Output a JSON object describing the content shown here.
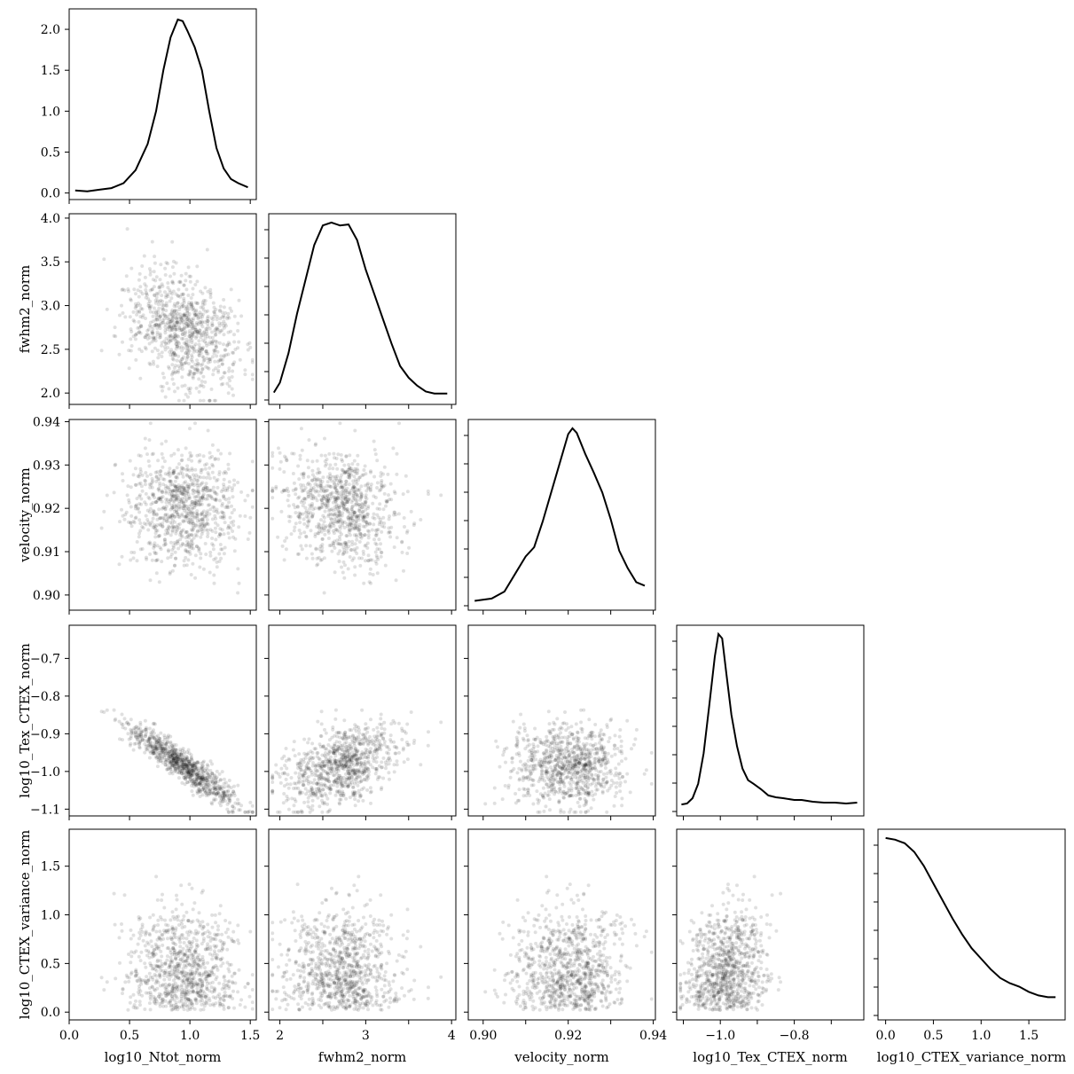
{
  "chart_data": {
    "type": "corner",
    "variables": [
      "log10_Ntot_norm",
      "fwhm2_norm",
      "velocity_norm",
      "log10_Tex_CTEX_norm",
      "log10_CTEX_variance_norm"
    ],
    "ranges": [
      [
        0.0,
        1.55
      ],
      [
        1.87,
        4.05
      ],
      [
        0.8965,
        0.9405
      ],
      [
        -1.118,
        -0.612
      ],
      [
        -0.08,
        1.88
      ]
    ],
    "ticks": [
      {
        "values": [
          0.0,
          0.5,
          1.0,
          1.5
        ],
        "labels": [
          "0.0",
          "0.5",
          "1.0",
          "1.5"
        ]
      },
      {
        "values": [
          2.0,
          2.5,
          3.0,
          3.5,
          4.0
        ],
        "labels": [
          "2.0",
          "2.5",
          "3.0",
          "3.5",
          "4.0"
        ],
        "x_labels": [
          "2",
          "",
          "3",
          "",
          "4"
        ]
      },
      {
        "values": [
          0.9,
          0.91,
          0.92,
          0.93,
          0.94
        ],
        "labels": [
          "0.90",
          "0.91",
          "0.92",
          "0.93",
          "0.94"
        ],
        "x_labels": [
          "0.90",
          "",
          "0.92",
          "",
          "0.94"
        ]
      },
      {
        "values": [
          -1.1,
          -1.0,
          -0.9,
          -0.8,
          -0.7
        ],
        "labels": [
          "−1.1",
          "−1.0",
          "−0.9",
          "−0.8",
          "−0.7"
        ],
        "x_labels": [
          "",
          "−1.0",
          "",
          "−0.8",
          ""
        ]
      },
      {
        "values": [
          0.0,
          0.5,
          1.0,
          1.5
        ],
        "labels": [
          "0.0",
          "0.5",
          "1.0",
          "1.5"
        ]
      }
    ],
    "axis_labels": [
      "log10_Ntot_norm",
      "fwhm2_norm",
      "velocity_norm",
      "log10_Tex_CTEX_norm",
      "log10_CTEX_variance_norm"
    ],
    "diagonal": [
      {
        "type": "line",
        "ylim": [
          -0.08,
          2.25
        ],
        "y_ticks": [
          0.0,
          0.5,
          1.0,
          1.5,
          2.0
        ],
        "y_labels": [
          "0.0",
          "0.5",
          "1.0",
          "1.5",
          "2.0"
        ],
        "x": [
          0.05,
          0.15,
          0.25,
          0.35,
          0.45,
          0.55,
          0.65,
          0.72,
          0.78,
          0.84,
          0.9,
          0.94,
          0.98,
          1.04,
          1.1,
          1.16,
          1.22,
          1.28,
          1.34,
          1.4,
          1.48
        ],
        "y": [
          0.03,
          0.02,
          0.04,
          0.06,
          0.12,
          0.28,
          0.6,
          1.0,
          1.5,
          1.9,
          2.12,
          2.1,
          1.98,
          1.78,
          1.5,
          1.0,
          0.55,
          0.3,
          0.17,
          0.12,
          0.07
        ]
      },
      {
        "type": "line",
        "x": [
          1.93,
          2.0,
          2.1,
          2.2,
          2.3,
          2.4,
          2.5,
          2.6,
          2.7,
          2.8,
          2.9,
          3.0,
          3.1,
          3.2,
          3.3,
          3.4,
          3.5,
          3.6,
          3.7,
          3.8,
          3.95
        ],
        "y": [
          0.05,
          0.15,
          0.45,
          0.85,
          1.2,
          1.55,
          1.75,
          1.78,
          1.75,
          1.76,
          1.6,
          1.3,
          1.05,
          0.8,
          0.55,
          0.32,
          0.2,
          0.12,
          0.06,
          0.04,
          0.04
        ]
      },
      {
        "type": "line",
        "x": [
          0.898,
          0.902,
          0.905,
          0.908,
          0.91,
          0.912,
          0.914,
          0.916,
          0.918,
          0.92,
          0.921,
          0.922,
          0.924,
          0.926,
          0.928,
          0.93,
          0.932,
          0.934,
          0.936,
          0.938
        ],
        "y": [
          0.02,
          0.04,
          0.1,
          0.28,
          0.4,
          0.48,
          0.7,
          0.95,
          1.2,
          1.45,
          1.5,
          1.46,
          1.28,
          1.12,
          0.95,
          0.72,
          0.45,
          0.3,
          0.18,
          0.15
        ]
      },
      {
        "type": "line",
        "x": [
          -1.105,
          -1.09,
          -1.075,
          -1.06,
          -1.045,
          -1.03,
          -1.015,
          -1.005,
          -0.995,
          -0.985,
          -0.97,
          -0.955,
          -0.94,
          -0.925,
          -0.91,
          -0.89,
          -0.87,
          -0.85,
          -0.83,
          -0.8,
          -0.78,
          -0.75,
          -0.72,
          -0.69,
          -0.66,
          -0.63
        ],
        "y": [
          0.05,
          0.06,
          0.12,
          0.28,
          0.62,
          1.15,
          1.7,
          1.95,
          1.9,
          1.55,
          1.05,
          0.7,
          0.45,
          0.32,
          0.28,
          0.22,
          0.15,
          0.13,
          0.12,
          0.1,
          0.1,
          0.08,
          0.07,
          0.07,
          0.06,
          0.07
        ]
      },
      {
        "type": "line",
        "x": [
          0.0,
          0.1,
          0.2,
          0.3,
          0.4,
          0.5,
          0.6,
          0.7,
          0.8,
          0.9,
          1.0,
          1.1,
          1.2,
          1.3,
          1.4,
          1.5,
          1.6,
          1.7,
          1.78
        ],
        "y": [
          1.0,
          0.99,
          0.97,
          0.92,
          0.84,
          0.74,
          0.64,
          0.54,
          0.45,
          0.37,
          0.31,
          0.25,
          0.2,
          0.17,
          0.15,
          0.12,
          0.1,
          0.09,
          0.09
        ]
      }
    ],
    "scatter_model": {
      "n_points": 900,
      "mean": [
        0.95,
        2.72,
        0.9205,
        -0.985,
        0.45
      ],
      "std": [
        0.23,
        0.34,
        0.0071,
        0.055,
        0.35
      ],
      "correlation": [
        [
          1.0,
          -0.35,
          0.0,
          -0.93,
          0.0
        ],
        [
          -0.35,
          1.0,
          -0.25,
          0.45,
          0.0
        ],
        [
          0.0,
          -0.25,
          1.0,
          0.0,
          0.0
        ],
        [
          -0.93,
          0.45,
          0.0,
          1.0,
          0.1
        ],
        [
          0.0,
          0.0,
          0.0,
          0.1,
          1.0
        ]
      ]
    },
    "colors": {
      "line": "#000000",
      "points": "#000000",
      "point_opacity": 0.12
    }
  }
}
